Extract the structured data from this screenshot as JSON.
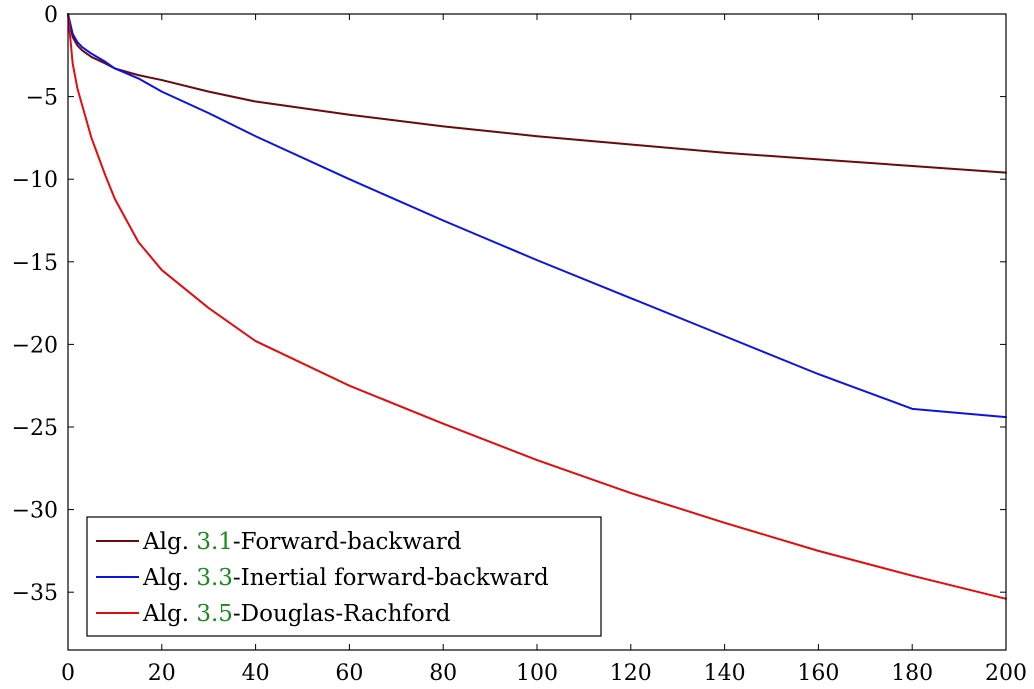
{
  "chart_data": {
    "type": "line",
    "title": "",
    "xlabel": "",
    "ylabel": "",
    "xlim": [
      0,
      200
    ],
    "ylim": [
      -38.5,
      0
    ],
    "xticks": [
      0,
      20,
      40,
      60,
      80,
      100,
      120,
      140,
      160,
      180,
      200
    ],
    "yticks": [
      0,
      -5,
      -10,
      -15,
      -20,
      -25,
      -30,
      -35
    ],
    "tick_labels": {
      "x": [
        "0",
        "20",
        "40",
        "60",
        "80",
        "100",
        "120",
        "140",
        "160",
        "180",
        "200"
      ],
      "y": [
        "0",
        "−5",
        "−10",
        "−15",
        "−20",
        "−25",
        "−30",
        "−35"
      ]
    },
    "grid": false,
    "legend_position": "bottom-left",
    "series": [
      {
        "name": "Alg. 3.1-Forward-backward",
        "legend": {
          "prefix": "Alg. ",
          "ref": "3.1",
          "suffix": "-Forward-backward"
        },
        "color": "#6b0a0a",
        "x": [
          0,
          1,
          2,
          3,
          5,
          8,
          10,
          15,
          20,
          30,
          40,
          60,
          80,
          100,
          120,
          140,
          160,
          180,
          200
        ],
        "y": [
          0,
          -1.4,
          -1.9,
          -2.2,
          -2.6,
          -3.0,
          -3.3,
          -3.7,
          -4.0,
          -4.7,
          -5.3,
          -6.1,
          -6.8,
          -7.4,
          -7.9,
          -8.4,
          -8.8,
          -9.2,
          -9.6
        ]
      },
      {
        "name": "Alg. 3.3-Inertial forward-backward",
        "legend": {
          "prefix": "Alg. ",
          "ref": "3.3",
          "suffix": "-Inertial forward-backward"
        },
        "color": "#0a14e6",
        "x": [
          0,
          1,
          2,
          3,
          5,
          8,
          10,
          15,
          20,
          30,
          40,
          60,
          80,
          100,
          120,
          140,
          160,
          180,
          200
        ],
        "y": [
          0,
          -1.2,
          -1.7,
          -2.0,
          -2.4,
          -2.9,
          -3.3,
          -3.9,
          -4.7,
          -6.0,
          -7.4,
          -10.0,
          -12.5,
          -14.9,
          -17.2,
          -19.5,
          -21.8,
          -23.9,
          -24.4
        ]
      },
      {
        "name": "Alg. 3.5-Douglas-Rachford",
        "legend": {
          "prefix": "Alg. ",
          "ref": "3.5",
          "suffix": "-Douglas-Rachford"
        },
        "color": "#e60a0a",
        "x": [
          0,
          1,
          2,
          3,
          5,
          8,
          10,
          15,
          20,
          30,
          40,
          60,
          80,
          100,
          120,
          140,
          160,
          180,
          200
        ],
        "y": [
          0,
          -3.0,
          -4.5,
          -5.5,
          -7.5,
          -9.8,
          -11.2,
          -13.8,
          -15.5,
          -17.8,
          -19.8,
          -22.5,
          -24.8,
          -27.0,
          -29.0,
          -30.8,
          -32.5,
          -34.0,
          -35.4
        ]
      }
    ]
  }
}
